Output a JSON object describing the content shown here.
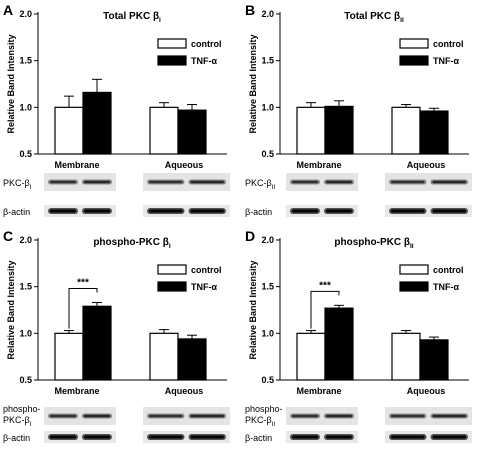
{
  "chart_data": [
    {
      "id": "A",
      "letter": "A",
      "type": "bar",
      "title": "Total PKC β",
      "title_sub": "I",
      "ylabel": "Relative Band Intensity",
      "ylim": [
        0.5,
        2.0
      ],
      "yticks": [
        "0.5",
        "1.0",
        "1.5",
        "2.0"
      ],
      "categories": [
        "Membrane",
        "Aqueous"
      ],
      "series": [
        {
          "name": "control",
          "values": [
            1.0,
            1.0
          ],
          "errors": [
            0.12,
            0.05
          ]
        },
        {
          "name": "TNF-α",
          "values": [
            1.16,
            0.97
          ],
          "errors": [
            0.14,
            0.06
          ]
        }
      ],
      "significance": null,
      "blot_labels": [
        {
          "main": "PKC-β",
          "sub": "I"
        },
        {
          "main": "β-actin",
          "sub": ""
        }
      ],
      "legend_position": "top-right"
    },
    {
      "id": "B",
      "letter": "B",
      "type": "bar",
      "title": "Total PKC β",
      "title_sub": "II",
      "ylabel": "Relative Band Intensity",
      "ylim": [
        0.5,
        2.0
      ],
      "yticks": [
        "0.5",
        "1.0",
        "1.5",
        "2.0"
      ],
      "categories": [
        "Membrane",
        "Aqueous"
      ],
      "series": [
        {
          "name": "control",
          "values": [
            1.0,
            1.0
          ],
          "errors": [
            0.05,
            0.03
          ]
        },
        {
          "name": "TNF-α",
          "values": [
            1.01,
            0.96
          ],
          "errors": [
            0.06,
            0.03
          ]
        }
      ],
      "significance": null,
      "blot_labels": [
        {
          "main": "PKC-β",
          "sub": "II"
        },
        {
          "main": "β-actin",
          "sub": ""
        }
      ],
      "legend_position": "top-right"
    },
    {
      "id": "C",
      "letter": "C",
      "type": "bar",
      "title": "phospho-PKC β",
      "title_sub": "I",
      "ylabel": "Relative Band Intensity",
      "ylim": [
        0.5,
        2.0
      ],
      "yticks": [
        "0.5",
        "1.0",
        "1.5",
        "2.0"
      ],
      "categories": [
        "Membrane",
        "Aqueous"
      ],
      "series": [
        {
          "name": "control",
          "values": [
            1.0,
            1.0
          ],
          "errors": [
            0.03,
            0.04
          ]
        },
        {
          "name": "TNF-α",
          "values": [
            1.29,
            0.94
          ],
          "errors": [
            0.04,
            0.04
          ]
        }
      ],
      "significance": "***",
      "blot_labels": [
        {
          "main": "phospho-",
          "main2": "PKC-β",
          "sub": "I"
        },
        {
          "main": "β-actin",
          "sub": ""
        }
      ],
      "legend_position": "top-right"
    },
    {
      "id": "D",
      "letter": "D",
      "type": "bar",
      "title": "phospho-PKC β",
      "title_sub": "II",
      "ylabel": "Relative Band Intensity",
      "ylim": [
        0.5,
        2.0
      ],
      "yticks": [
        "0.5",
        "1.0",
        "1.5",
        "2.0"
      ],
      "categories": [
        "Membrane",
        "Aqueous"
      ],
      "series": [
        {
          "name": "control",
          "values": [
            1.0,
            1.0
          ],
          "errors": [
            0.03,
            0.03
          ]
        },
        {
          "name": "TNF-α",
          "values": [
            1.27,
            0.93
          ],
          "errors": [
            0.03,
            0.03
          ]
        }
      ],
      "significance": "***",
      "blot_labels": [
        {
          "main": "phospho-",
          "main2": "PKC-β",
          "sub": "II"
        },
        {
          "main": "β-actin",
          "sub": ""
        }
      ],
      "legend_position": "top-right"
    }
  ]
}
